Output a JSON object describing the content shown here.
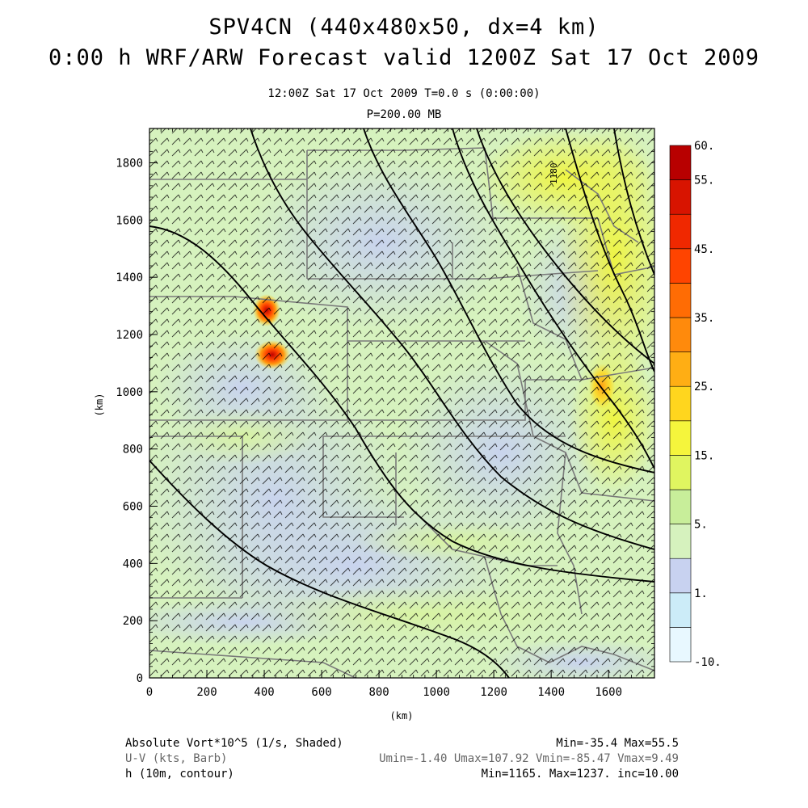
{
  "header": {
    "title_line1": "SPV4CN (440x480x50, dx=4 km)",
    "title_line2": "0:00 h WRF/ARW Forecast valid 1200Z Sat 17 Oct 2009",
    "subtitle_time": "12:00Z Sat 17 Oct 2009     T=0.0 s (0:00:00)",
    "subtitle_level": "P=200.00 MB"
  },
  "chart_data": {
    "type": "heatmap",
    "xlabel": "(km)",
    "ylabel": "(km)",
    "xlim": [
      0,
      1760
    ],
    "ylim": [
      0,
      1920
    ],
    "x_ticks": [
      "0",
      "200",
      "400",
      "600",
      "800",
      "1000",
      "1200",
      "1400",
      "1600"
    ],
    "y_ticks": [
      "0",
      "200",
      "400",
      "600",
      "800",
      "1000",
      "1200",
      "1400",
      "1600",
      "1800"
    ],
    "colorbar_labels": [
      "60.",
      "55.",
      "45.",
      "35.",
      "25.",
      "15.",
      "5.",
      "1.",
      "-10."
    ],
    "colorbar_levels": [
      -10,
      -5,
      1,
      3,
      5,
      10,
      15,
      20,
      25,
      30,
      35,
      40,
      45,
      50,
      55,
      60
    ],
    "colorbar_colors": [
      "#e8f8ff",
      "#ccecf8",
      "#c8d2f0",
      "#d6f2be",
      "#c8ee9a",
      "#e0f560",
      "#f5f53c",
      "#ffd61e",
      "#ffae14",
      "#ff8a0c",
      "#ff6c04",
      "#ff4400",
      "#f02800",
      "#d81400",
      "#b80000"
    ],
    "contour_label": "1180",
    "shaded_field": "Absolute Vort*10^5 (1/s, Shaded)",
    "barb_field": "U-V (kts, Barb)",
    "contour_field": "h (10m, contour)",
    "stats": {
      "vort": "Min=-35.4 Max=55.5",
      "uv": "Umin=-1.40 Umax=107.92 Vmin=-85.47 Vmax=9.49",
      "h": "Min=1165. Max=1237. inc=10.00"
    }
  },
  "footer": {
    "left_1": "Absolute Vort*10^5 (1/s, Shaded)",
    "left_2": "U-V (kts, Barb)",
    "left_3": "h (10m, contour)",
    "right_1": "Min=-35.4 Max=55.5",
    "right_2": "Umin=-1.40 Umax=107.92 Vmin=-85.47 Vmax=9.49",
    "right_3": "Min=1165. Max=1237. inc=10.00"
  }
}
